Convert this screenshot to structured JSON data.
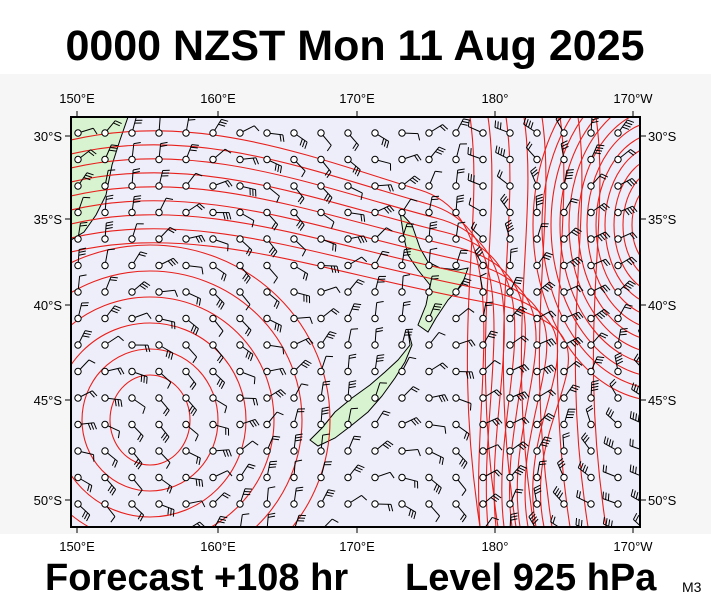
{
  "header": {
    "title": "0000 NZST Mon 11 Aug 2025"
  },
  "map": {
    "lon_labels_top": [
      "150°E",
      "160°E",
      "170°E",
      "180°",
      "170°W"
    ],
    "lon_labels_bottom": [
      "150°E",
      "160°E",
      "170°E",
      "180°",
      "170°W"
    ],
    "lat_labels_left": [
      "30°S",
      "35°S",
      "40°S",
      "45°S",
      "50°S"
    ],
    "lat_labels_right": [
      "30°S",
      "35°S",
      "40°S",
      "45°S",
      "50°S"
    ]
  },
  "footer": {
    "forecast": "Forecast +108 hr",
    "level": "Level 925 hPa",
    "model": "M3"
  }
}
